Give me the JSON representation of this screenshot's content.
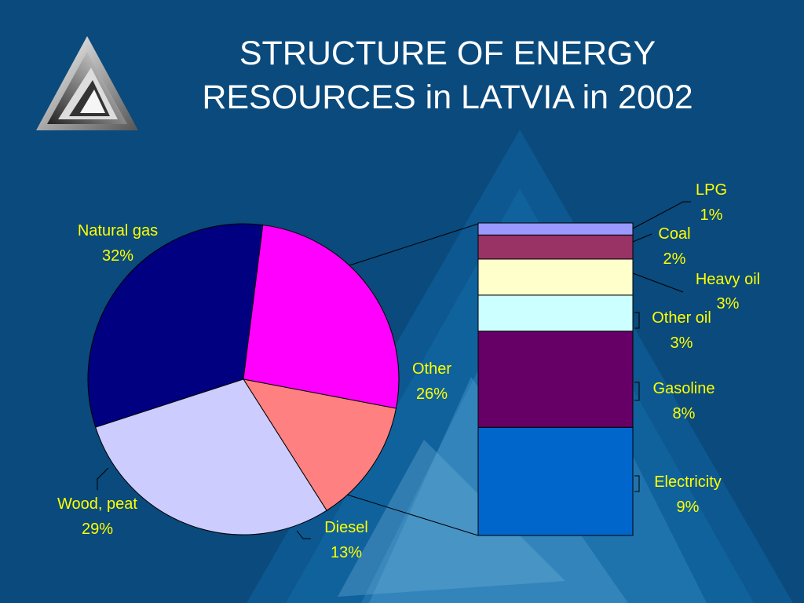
{
  "slide": {
    "title_line1": "STRUCTURE OF ENERGY",
    "title_line2": "RESOURCES in LATVIA in 2002"
  },
  "colors": {
    "background": "#0a4a7c",
    "label_text": "#ffff00",
    "title_text": "#ffffff"
  },
  "chart_data": {
    "type": "pie",
    "unit": "%",
    "pie": [
      {
        "name": "Natural gas",
        "value": 32,
        "label": "32%",
        "color": "#000080"
      },
      {
        "name": "Other",
        "value": 26,
        "label": "26%",
        "color": "#ff00ff"
      },
      {
        "name": "Diesel",
        "value": 13,
        "label": "13%",
        "color": "#ff8080"
      },
      {
        "name": "Wood, peat",
        "value": 29,
        "label": "29%",
        "color": "#ccccff"
      }
    ],
    "breakdown_of": "Other",
    "stack": [
      {
        "name": "Electricity",
        "value": 9,
        "label": "9%",
        "color": "#0066cc"
      },
      {
        "name": "Gasoline",
        "value": 8,
        "label": "8%",
        "color": "#660066"
      },
      {
        "name": "Other oil",
        "value": 3,
        "label": "3%",
        "color": "#ccffff"
      },
      {
        "name": "Heavy oil",
        "value": 3,
        "label": "3%",
        "color": "#ffffcc"
      },
      {
        "name": "Coal",
        "value": 2,
        "label": "2%",
        "color": "#993366"
      },
      {
        "name": "LPG",
        "value": 1,
        "label": "1%",
        "color": "#9999ff"
      }
    ]
  }
}
